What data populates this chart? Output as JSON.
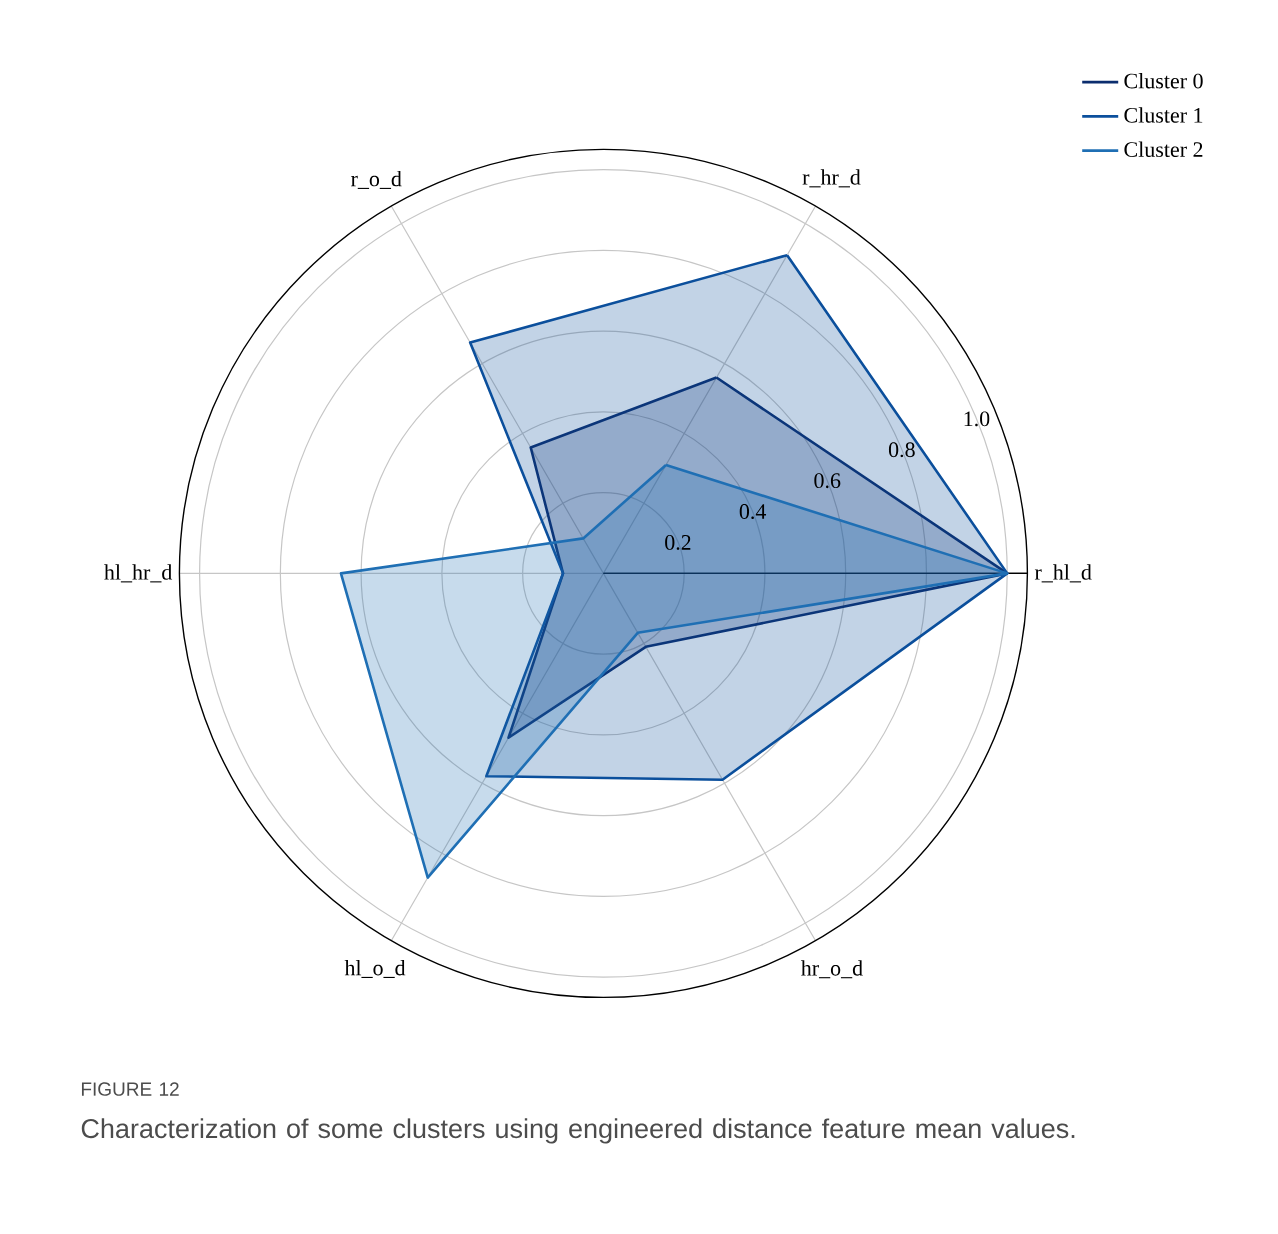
{
  "chart_data": {
    "type": "radar",
    "categories": [
      "r_hr_d",
      "r_hl_d",
      "hr_o_d",
      "hl_o_d",
      "hl_hr_d",
      "r_o_d"
    ],
    "series": [
      {
        "name": "Cluster 0",
        "color": "#0b2d6e",
        "values": [
          0.56,
          1.0,
          0.21,
          0.47,
          0.1,
          0.36
        ]
      },
      {
        "name": "Cluster 1",
        "color": "#0b4f9c",
        "values": [
          0.91,
          1.0,
          0.59,
          0.58,
          0.1,
          0.66
        ]
      },
      {
        "name": "Cluster 2",
        "color": "#1f6fb4",
        "values": [
          0.31,
          1.0,
          0.17,
          0.87,
          0.65,
          0.1
        ]
      }
    ],
    "ylim": [
      0,
      1.05
    ],
    "yticks": [
      0.2,
      0.4,
      0.6,
      0.8,
      {
        "value": 1.0,
        "label": "1.0"
      }
    ],
    "grid": true,
    "legend": "top right",
    "annotations": [
      "FIGURE 12",
      "Characterization of some clusters using engineered distance feature mean values."
    ]
  }
}
